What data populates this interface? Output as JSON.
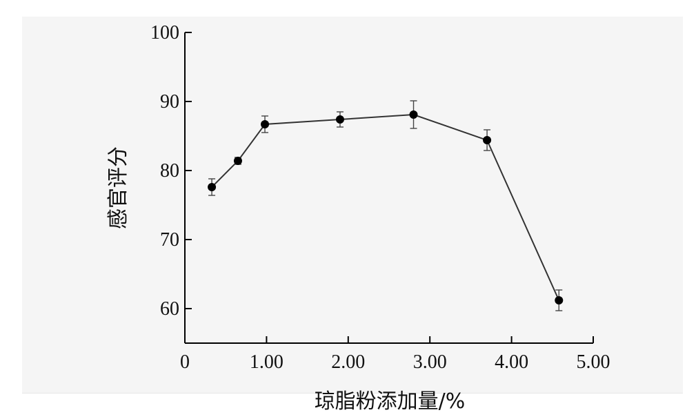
{
  "chart_data": {
    "type": "line",
    "xlabel": "琼脂粉添加量/%",
    "ylabel": "感官评分",
    "xlim": [
      0,
      5.0
    ],
    "ylim": [
      55,
      100
    ],
    "x_ticks": [
      "0",
      "1.00",
      "2.00",
      "3.00",
      "4.00",
      "5.00"
    ],
    "y_ticks": [
      "60",
      "70",
      "80",
      "90",
      "100"
    ],
    "grid": false,
    "series": [
      {
        "x": [
          0.33,
          0.65,
          0.98,
          1.9,
          2.8,
          3.7,
          4.58
        ],
        "y": [
          77.6,
          81.4,
          86.7,
          87.4,
          88.1,
          84.4,
          61.2
        ],
        "error": [
          1.2,
          0.5,
          1.2,
          1.1,
          2.0,
          1.5,
          1.5
        ]
      }
    ]
  },
  "colors": {
    "line": "#333333",
    "marker": "#000000",
    "panel": "#f5f5f5"
  }
}
